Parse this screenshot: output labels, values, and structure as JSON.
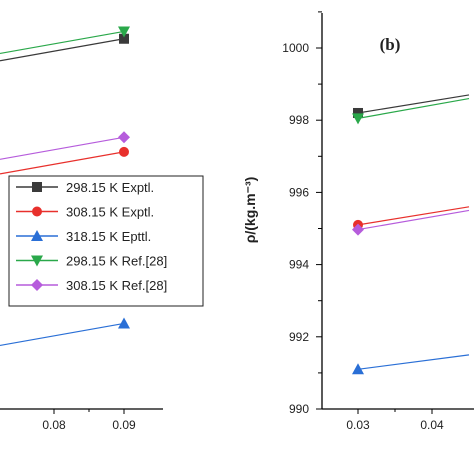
{
  "chart_data": [
    {
      "type": "line",
      "panel": "a (cropped)",
      "x_ticks": [
        0.08,
        0.09
      ],
      "legend_placement": "center-right",
      "series": [
        {
          "name": "298.15 K Exptl.",
          "color": "#3a3a3a",
          "marker": "square",
          "x": [
            0.09
          ],
          "y": [
            1000.5
          ]
        },
        {
          "name": "308.15 K Exptl.",
          "color": "#e8302c",
          "marker": "circle",
          "x": [
            0.09
          ],
          "y": [
            997.4
          ]
        },
        {
          "name": "318.15 K Epttl.",
          "color": "#2a6fd6",
          "marker": "triangle-up",
          "x": [
            0.09
          ],
          "y": [
            992.7
          ]
        },
        {
          "name": "298.15 K Ref.[28]",
          "color": "#2aa84a",
          "marker": "triangle-down",
          "x": [
            0.09
          ],
          "y": [
            1000.7
          ]
        },
        {
          "name": "308.15 K Ref.[28]",
          "color": "#b65cdc",
          "marker": "diamond",
          "x": [
            0.09
          ],
          "y": [
            997.8
          ]
        }
      ],
      "grid": false
    },
    {
      "type": "line",
      "panel": "b",
      "label": "(b)",
      "ylabel": "ρ/(kg.m⁻³)",
      "ylim": [
        990,
        1001
      ],
      "y_ticks": [
        990,
        992,
        994,
        996,
        998,
        1000
      ],
      "x_ticks": [
        0.03,
        0.04
      ],
      "series": [
        {
          "color": "#3a3a3a",
          "marker": "square",
          "x": [
            0.03,
            0.045
          ],
          "y": [
            998.2,
            998.7
          ]
        },
        {
          "color": "#2aa84a",
          "marker": "triangle-down",
          "x": [
            0.03,
            0.045
          ],
          "y": [
            998.05,
            998.6
          ]
        },
        {
          "color": "#e8302c",
          "marker": "circle",
          "x": [
            0.03,
            0.045
          ],
          "y": [
            995.1,
            995.6
          ]
        },
        {
          "color": "#b65cdc",
          "marker": "diamond",
          "x": [
            0.03,
            0.045
          ],
          "y": [
            994.97,
            995.5
          ]
        },
        {
          "color": "#2a6fd6",
          "marker": "triangle-up",
          "x": [
            0.03,
            0.045
          ],
          "y": [
            991.1,
            991.5
          ]
        }
      ],
      "grid": false
    }
  ]
}
